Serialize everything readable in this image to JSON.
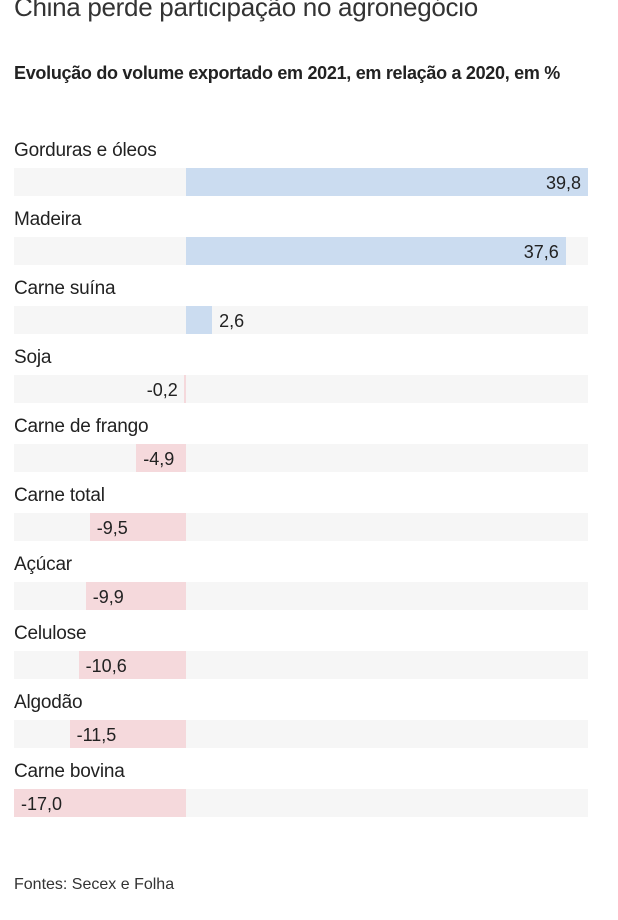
{
  "header": {
    "title": "China perde participação no agronegócio",
    "subtitle": "Evolução do volume exportado em 2021, em relação a 2020, em %"
  },
  "footer": {
    "source": "Fontes: Secex e Folha"
  },
  "colors": {
    "positive": "#cbdcf0",
    "negative": "#f5d9dc",
    "track": "#f6f6f6"
  },
  "chart_data": {
    "type": "bar",
    "orientation": "horizontal",
    "title": "China perde participação no agronegócio",
    "subtitle": "Evolução do volume exportado em 2021, em relação a 2020, em %",
    "xlabel": "",
    "ylabel": "",
    "xlim": [
      -17.0,
      39.8
    ],
    "grid": false,
    "categories": [
      "Gorduras e óleos",
      "Madeira",
      "Carne suína",
      "Soja",
      "Carne de frango",
      "Carne total",
      "Açúcar",
      "Celulose",
      "Algodão",
      "Carne bovina"
    ],
    "values": [
      39.8,
      37.6,
      2.6,
      -0.2,
      -4.9,
      -9.5,
      -9.9,
      -10.6,
      -11.5,
      -17.0
    ],
    "labels": [
      "39,8",
      "37,6",
      "2,6",
      "-0,2",
      "-4,9",
      "-9,5",
      "-9,9",
      "-10,6",
      "-11,5",
      "-17,0"
    ]
  }
}
